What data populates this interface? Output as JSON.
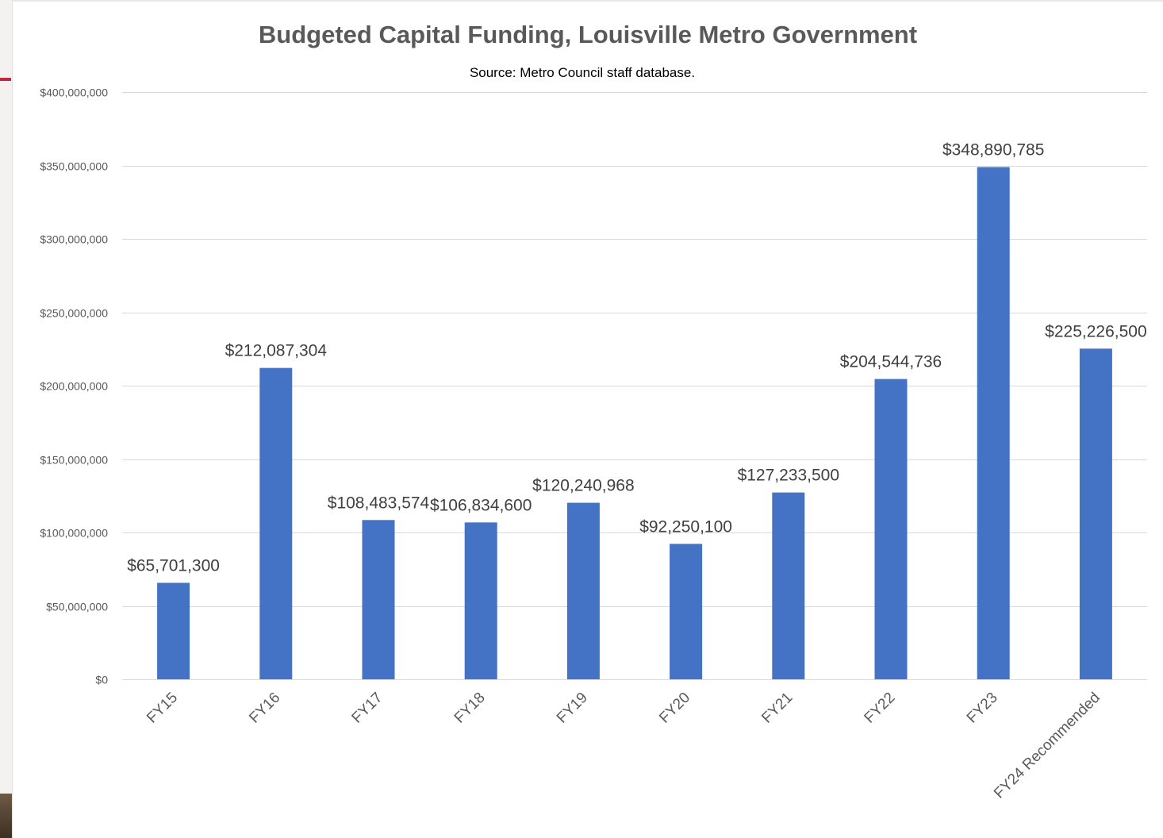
{
  "chart_data": {
    "type": "bar",
    "title": "Budgeted Capital Funding, Louisville Metro Government",
    "subtitle": "Source: Metro Council staff database.",
    "categories": [
      "FY15",
      "FY16",
      "FY17",
      "FY18",
      "FY19",
      "FY20",
      "FY21",
      "FY22",
      "FY23",
      "FY24 Recommended"
    ],
    "values": [
      65701300,
      212087304,
      108483574,
      106834600,
      120240968,
      92250100,
      127233500,
      204544736,
      348890785,
      225226500
    ],
    "data_labels": [
      "$65,701,300",
      "$212,087,304",
      "$108,483,574",
      "$106,834,600",
      "$120,240,968",
      "$92,250,100",
      "$127,233,500",
      "$204,544,736",
      "$348,890,785",
      "$225,226,500"
    ],
    "y_ticks": [
      0,
      50000000,
      100000000,
      150000000,
      200000000,
      250000000,
      300000000,
      350000000,
      400000000
    ],
    "y_tick_labels": [
      "$0",
      "$50,000,000",
      "$100,000,000",
      "$150,000,000",
      "$200,000,000",
      "$250,000,000",
      "$300,000,000",
      "$350,000,000",
      "$400,000,000"
    ],
    "ylim": [
      0,
      400000000
    ],
    "xlabel": "",
    "ylabel": "",
    "grid": true,
    "legend": "none",
    "colors": {
      "bar": "#4472C4",
      "grid": "#d9d9d9",
      "title": "#595959",
      "text": "#404040",
      "axis_text": "#595959"
    }
  }
}
